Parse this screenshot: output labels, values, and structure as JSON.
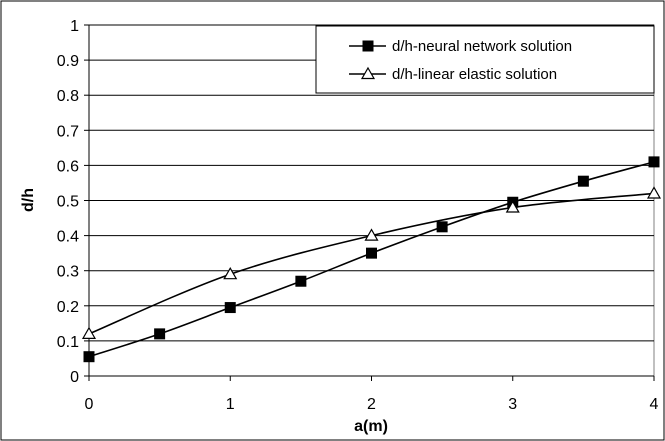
{
  "chart_data": {
    "type": "line",
    "xlabel": "a(m)",
    "ylabel": "d/h",
    "xlim": [
      0,
      4
    ],
    "ylim": [
      0,
      1
    ],
    "x_ticks": [
      "0",
      "1",
      "2",
      "3",
      "4"
    ],
    "y_ticks": [
      "0",
      "0.1",
      "0.2",
      "0.3",
      "0.4",
      "0.5",
      "0.6",
      "0.7",
      "0.8",
      "0.9",
      "1"
    ],
    "grid": "horizontal",
    "legend_position": "top-right",
    "series": [
      {
        "name": "d/h-neural network solution",
        "marker": "filled-square",
        "color": "#000000",
        "x": [
          0,
          0.5,
          1,
          1.5,
          2,
          2.5,
          3,
          3.5,
          4
        ],
        "y": [
          0.055,
          0.12,
          0.195,
          0.27,
          0.35,
          0.425,
          0.495,
          0.555,
          0.61
        ]
      },
      {
        "name": "d/h-linear elastic solution",
        "marker": "open-triangle",
        "color": "#000000",
        "x": [
          0,
          1,
          2,
          3,
          4
        ],
        "y": [
          0.12,
          0.29,
          0.4,
          0.48,
          0.52
        ]
      }
    ]
  }
}
